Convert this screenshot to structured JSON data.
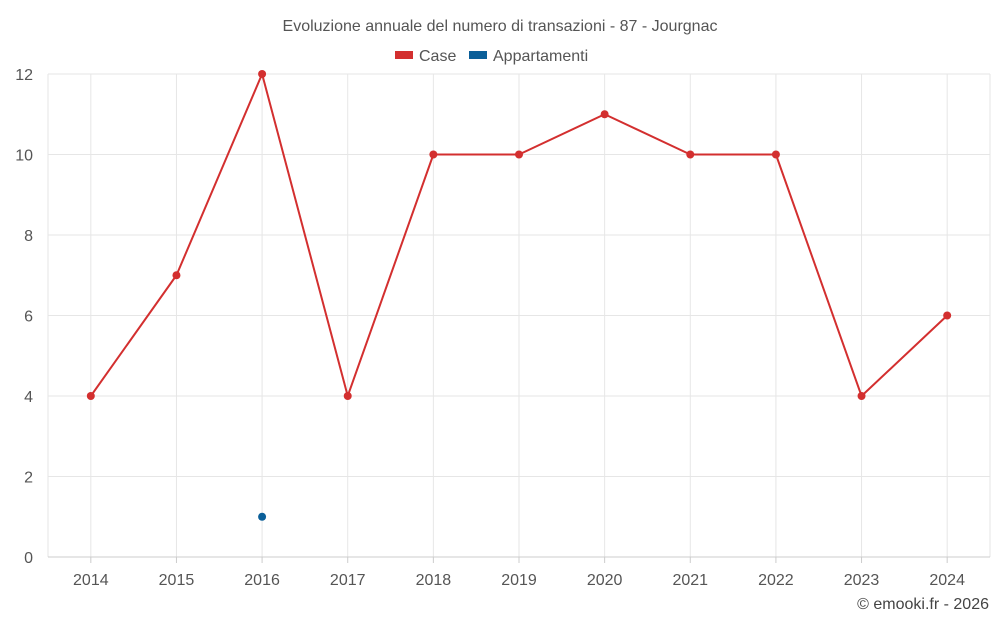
{
  "chart_data": {
    "type": "line",
    "title": "Evoluzione annuale del numero di transazioni - 87 - Jourgnac",
    "categories": [
      "2014",
      "2015",
      "2016",
      "2017",
      "2018",
      "2019",
      "2020",
      "2021",
      "2022",
      "2023",
      "2024"
    ],
    "ylim": [
      0,
      12
    ],
    "yticks": [
      0,
      2,
      4,
      6,
      8,
      10,
      12
    ],
    "xlabel": "",
    "ylabel": "",
    "grid": true,
    "legend_position": "top-center",
    "series": [
      {
        "name": "Case",
        "color": "#d32f2f",
        "values": [
          4,
          7,
          12,
          4,
          10,
          10,
          11,
          10,
          10,
          4,
          6
        ]
      },
      {
        "name": "Appartamenti",
        "color": "#0b5f99",
        "values": [
          null,
          null,
          1,
          null,
          null,
          null,
          null,
          null,
          null,
          null,
          null
        ]
      }
    ]
  },
  "credit": "© emooki.fr - 2026"
}
